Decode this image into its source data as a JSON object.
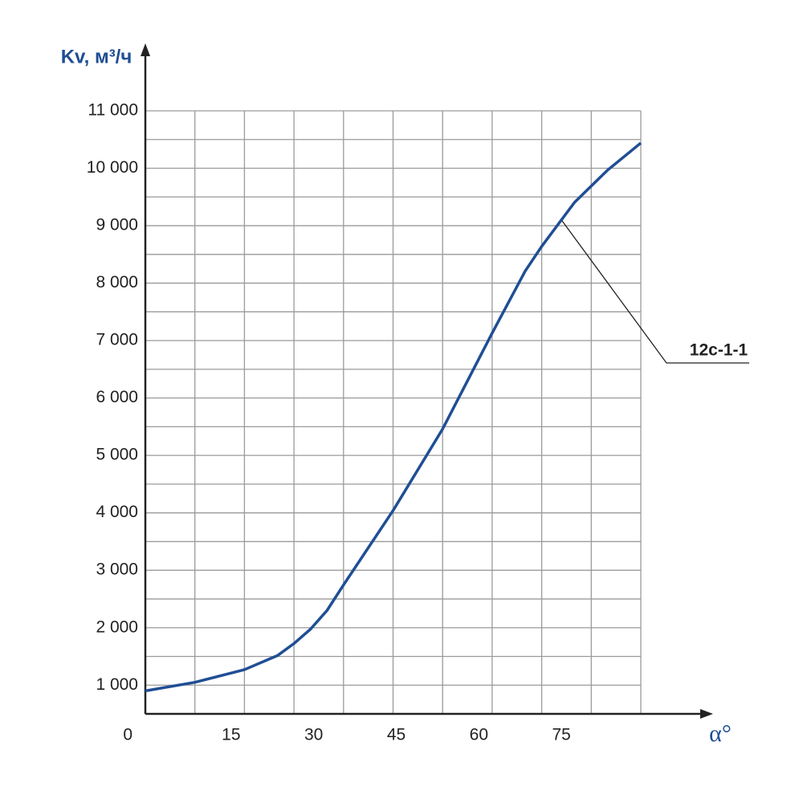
{
  "chart_data": {
    "type": "line",
    "y_label": "Kv, м³/ч",
    "x_label": "α°",
    "xlim": [
      0,
      90
    ],
    "ylim": [
      500,
      11000
    ],
    "xticks": [
      0,
      15,
      30,
      45,
      60,
      75
    ],
    "xgrid": [
      9,
      18,
      27,
      36,
      45,
      54,
      63,
      72,
      81,
      90
    ],
    "yticks": [
      {
        "value": 1000,
        "label": "1 000"
      },
      {
        "value": 2000,
        "label": "2 000"
      },
      {
        "value": 3000,
        "label": "3 000"
      },
      {
        "value": 4000,
        "label": "4 000"
      },
      {
        "value": 5000,
        "label": "5 000"
      },
      {
        "value": 6000,
        "label": "6 000"
      },
      {
        "value": 7000,
        "label": "7 000"
      },
      {
        "value": 8000,
        "label": "8 000"
      },
      {
        "value": 9000,
        "label": "9 000"
      },
      {
        "value": 10000,
        "label": "10 000"
      },
      {
        "value": 11000,
        "label": "11 000"
      }
    ],
    "ygrid": [
      1000,
      1500,
      2000,
      2500,
      3000,
      3500,
      4000,
      4500,
      5000,
      5500,
      6000,
      6500,
      7000,
      7500,
      8000,
      8500,
      9000,
      9500,
      10000,
      10500,
      11000
    ],
    "grid": true,
    "series": [
      {
        "name": "12c-1-1",
        "color": "#1f4e94",
        "x": [
          0,
          9,
          18,
          24,
          27,
          30,
          33,
          36,
          45,
          54,
          63,
          69,
          72,
          75.5,
          78,
          84,
          90
        ],
        "values": [
          900,
          1050,
          1270,
          1515,
          1725,
          1975,
          2300,
          2745,
          4040,
          5460,
          7130,
          8210,
          8640,
          9090,
          9410,
          9970,
          10440
        ]
      }
    ]
  }
}
